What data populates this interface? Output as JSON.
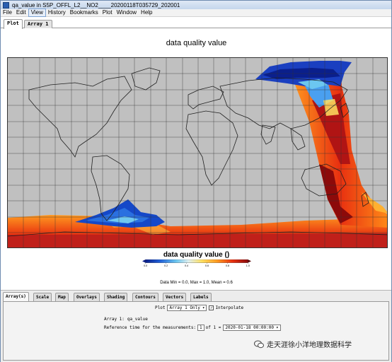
{
  "window": {
    "title": "qa_value in S5P_OFFL_L2__NO2____20200118T035729_202001"
  },
  "menu": [
    "File",
    "Edit",
    "View",
    "History",
    "Bookmarks",
    "Plot",
    "Window",
    "Help"
  ],
  "top_tabs": [
    "Plot",
    "Array 1"
  ],
  "plot": {
    "title": "data quality value",
    "colorbar_title": "data quality value ()",
    "colorbar_ticks": [
      "0.0",
      "0.2",
      "0.4",
      "0.6",
      "0.8",
      "1.0"
    ],
    "stats": "Data Min = 0.0, Max = 1.0, Mean = 0.6",
    "colors": {
      "land_fill": "#c0c0c0",
      "coast": "#202020",
      "grid": "#333333"
    },
    "colormap": [
      "#0a1f8c",
      "#1f5fd8",
      "#6cc7f0",
      "#e0f0f0",
      "#ffe060",
      "#ff9a20",
      "#e83010",
      "#8c0a0a"
    ]
  },
  "controls": {
    "tabs": [
      "Array(s)",
      "Scale",
      "Map",
      "Overlays",
      "Shading",
      "Contours",
      "Vectors",
      "Labels"
    ],
    "plot_label": "Plot",
    "plot_mode": "Array 1 Only",
    "interpolate_label": "Interpolate",
    "interpolate_checked": true,
    "array1_label": "Array 1:",
    "array1_value": "qa_value",
    "ref_time_label": "Reference time for the measurements:",
    "ref_index": "1",
    "ref_of": "of 1 =",
    "ref_date": "2020-01-18 00:00:00"
  },
  "watermark": {
    "text": "走天涯徐小洋地理数据科学"
  }
}
